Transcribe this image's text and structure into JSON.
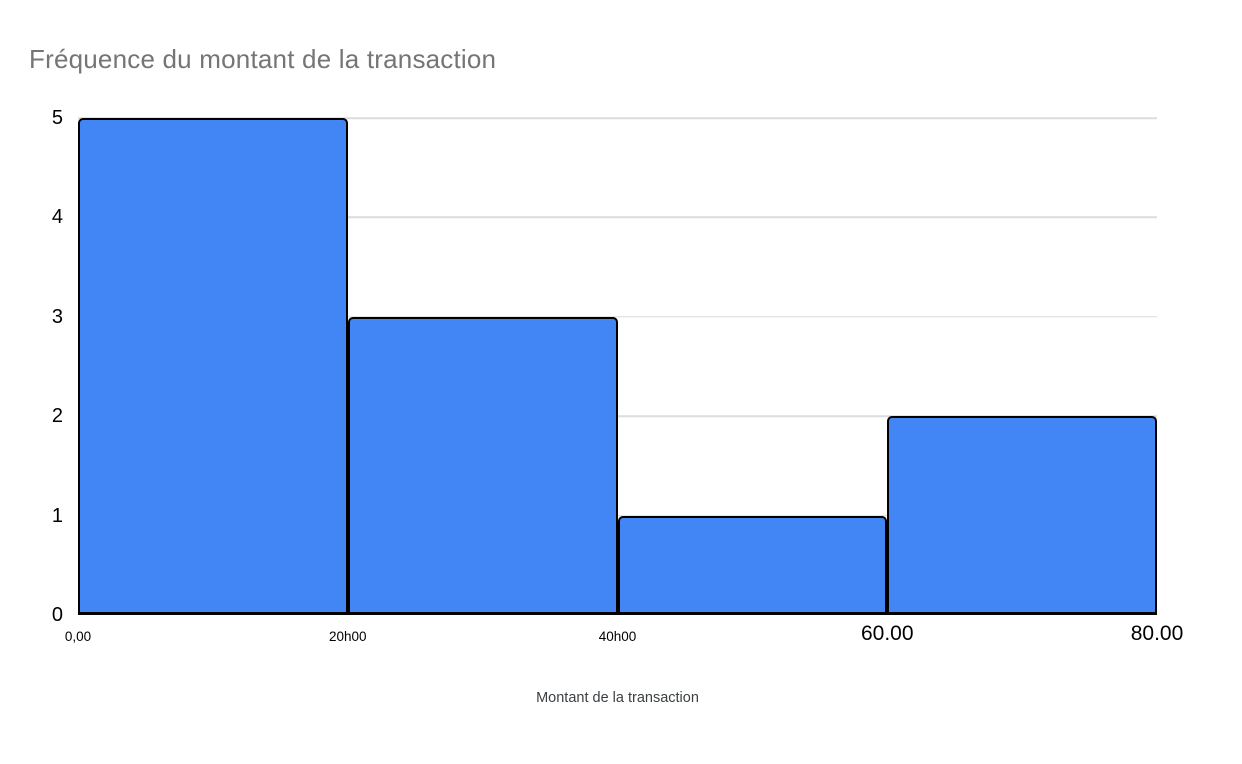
{
  "page": {
    "background": "#FFFFFF"
  },
  "chart_data": {
    "type": "bar",
    "subtype": "histogram",
    "title": "Fréquence du montant de la transaction",
    "xlabel": "Montant de la transaction",
    "ylabel": "",
    "categories": [
      "0-20",
      "20-40",
      "40-60",
      "60-80"
    ],
    "values": [
      5,
      3,
      1,
      2
    ],
    "ylim": [
      0,
      5
    ],
    "y_ticks": [
      0,
      1,
      2,
      3,
      4,
      5
    ],
    "x_edge_labels": [
      {
        "label": "0,00",
        "style": "small"
      },
      {
        "label": "20h00",
        "style": "small"
      },
      {
        "label": "40h00",
        "style": "small"
      },
      {
        "label": "60.00",
        "style": "large"
      },
      {
        "label": "80.00",
        "style": "large"
      }
    ],
    "grid": true,
    "legend": "none",
    "colors": {
      "bar_fill": "#4285F4",
      "bar_border": "#000000",
      "gridline": "#DADCE0",
      "title_text": "#757575",
      "axis_text": "#000000",
      "xlabel_text": "#3C4043"
    }
  }
}
